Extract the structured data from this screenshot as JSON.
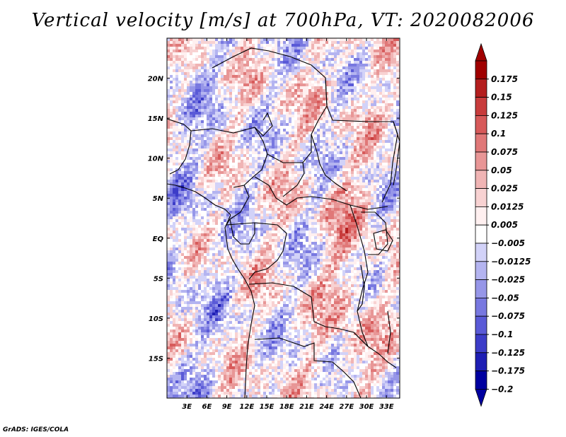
{
  "title": "Vertical velocity [m/s] at 700hPa, VT: 2020082006",
  "credit": "GrADS: IGES/COLA",
  "chart_data": {
    "type": "heatmap",
    "variable": "Vertical velocity",
    "units": "m/s",
    "level": "700hPa",
    "valid_time": "2020082006",
    "x_axis": {
      "ticks": [
        3,
        6,
        9,
        12,
        15,
        18,
        21,
        24,
        27,
        30,
        33
      ],
      "tick_labels": [
        "3E",
        "6E",
        "9E",
        "12E",
        "15E",
        "18E",
        "21E",
        "24E",
        "27E",
        "30E",
        "33E"
      ],
      "range": [
        0,
        35
      ]
    },
    "y_axis": {
      "ticks": [
        20,
        15,
        10,
        5,
        0,
        -5,
        -10,
        -15
      ],
      "tick_labels": [
        "20N",
        "15N",
        "10N",
        "5N",
        "EQ",
        "5S",
        "10S",
        "15S"
      ],
      "range": [
        -20,
        25
      ]
    },
    "colorbar": {
      "levels": [
        0.175,
        0.15,
        0.125,
        0.1,
        0.075,
        0.05,
        0.025,
        0.0125,
        0.005,
        -0.005,
        -0.0125,
        -0.025,
        -0.05,
        -0.075,
        -0.1,
        -0.125,
        -0.175,
        -0.2
      ],
      "labels": [
        "0.175",
        "0.15",
        "0.125",
        "0.1",
        "0.075",
        "0.05",
        "0.025",
        "0.0125",
        "0.005",
        "−0.005",
        "−0.0125",
        "−0.025",
        "−0.05",
        "−0.075",
        "−0.1",
        "−0.125",
        "−0.175",
        "−0.2"
      ],
      "colors": [
        "#a00000",
        "#b41e1e",
        "#c83c3c",
        "#d75a5a",
        "#e07878",
        "#e89696",
        "#f0b4b4",
        "#f8d2d2",
        "#fff0f0",
        "#ffffff",
        "#d2d2f8",
        "#b4b4f0",
        "#9696e8",
        "#7878e0",
        "#5a5ad7",
        "#3c3cc8",
        "#1e1eb4",
        "#0000a0"
      ],
      "top_color": "#a00000",
      "bottom_color": "#0000a0"
    }
  }
}
